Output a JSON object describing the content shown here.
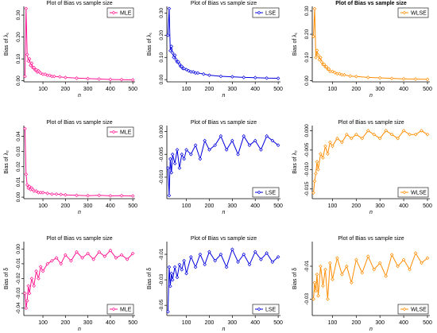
{
  "figure": {
    "note": "3x3 grid of bias plots"
  },
  "chart_data": [
    {
      "type": "line",
      "title": "Plot of Bias vs sample size",
      "title_bold": false,
      "xlabel": "n",
      "ylabel": "Bias of λ₁",
      "color": "#ff1493",
      "legend": "MLE",
      "legend_pos": "top-right",
      "xlim": [
        15,
        510
      ],
      "xticks": [
        100,
        200,
        300,
        400,
        500
      ],
      "ylim": [
        -0.005,
        0.34
      ],
      "yticks": [
        0.0,
        0.1,
        0.2,
        0.3
      ],
      "ytick_labels": [
        "0.00",
        "0.10",
        "0.20",
        "0.30"
      ],
      "x": [
        20,
        25,
        30,
        35,
        40,
        45,
        50,
        55,
        60,
        65,
        70,
        75,
        80,
        85,
        90,
        100,
        110,
        120,
        130,
        140,
        150,
        175,
        200,
        250,
        300,
        350,
        400,
        450,
        500
      ],
      "y": [
        0.02,
        0.33,
        0.12,
        0.09,
        0.1,
        0.07,
        0.08,
        0.06,
        0.06,
        0.05,
        0.05,
        0.04,
        0.045,
        0.04,
        0.035,
        0.03,
        0.03,
        0.025,
        0.025,
        0.02,
        0.02,
        0.018,
        0.015,
        0.012,
        0.01,
        0.008,
        0.006,
        0.005,
        0.004
      ]
    },
    {
      "type": "line",
      "title": "Plot of Bias vs sample size",
      "title_bold": false,
      "xlabel": "n",
      "ylabel": "Bias of λ₁",
      "color": "#0000dd",
      "legend": "LSE",
      "legend_pos": "top-right",
      "xlim": [
        15,
        510
      ],
      "xticks": [
        100,
        200,
        300,
        400,
        500
      ],
      "ylim": [
        -0.01,
        0.33
      ],
      "yticks": [
        0.0,
        0.1,
        0.2,
        0.3
      ],
      "ytick_labels": [
        "0.00",
        "0.10",
        "0.20",
        "0.30"
      ],
      "x": [
        20,
        25,
        30,
        35,
        40,
        45,
        50,
        55,
        60,
        65,
        70,
        75,
        80,
        85,
        90,
        100,
        110,
        120,
        130,
        140,
        150,
        175,
        200,
        250,
        300,
        350,
        400,
        450,
        500
      ],
      "y": [
        0.2,
        0.32,
        0.13,
        0.15,
        0.12,
        0.1,
        0.11,
        0.09,
        0.08,
        0.08,
        0.07,
        0.06,
        0.06,
        0.05,
        0.05,
        0.045,
        0.04,
        0.035,
        0.035,
        0.03,
        0.03,
        0.025,
        0.02,
        0.015,
        0.013,
        0.01,
        0.009,
        0.007,
        0.006
      ]
    },
    {
      "type": "line",
      "title": "Plot of Bias vs sample size",
      "title_bold": true,
      "xlabel": "n",
      "ylabel": "Bias of λ₁",
      "color": "#ff8c00",
      "legend": "WLSE",
      "legend_pos": "top-right",
      "xlim": [
        15,
        510
      ],
      "xticks": [
        100,
        200,
        300,
        400,
        500
      ],
      "ylim": [
        -0.005,
        0.32
      ],
      "yticks": [
        0.0,
        0.1,
        0.2,
        0.3
      ],
      "ytick_labels": [
        "0.00",
        "0.10",
        "0.20",
        "0.30"
      ],
      "x": [
        20,
        25,
        30,
        35,
        40,
        45,
        50,
        55,
        60,
        65,
        70,
        75,
        80,
        85,
        90,
        100,
        110,
        120,
        130,
        140,
        150,
        175,
        200,
        250,
        300,
        350,
        400,
        450,
        500
      ],
      "y": [
        0.19,
        0.31,
        0.1,
        0.13,
        0.11,
        0.09,
        0.1,
        0.08,
        0.07,
        0.07,
        0.06,
        0.06,
        0.05,
        0.05,
        0.04,
        0.04,
        0.035,
        0.03,
        0.03,
        0.025,
        0.025,
        0.02,
        0.018,
        0.014,
        0.012,
        0.01,
        0.008,
        0.007,
        0.006
      ]
    },
    {
      "type": "line",
      "title": "Plot of Bias vs sample size",
      "title_bold": false,
      "xlabel": "n",
      "ylabel": "Bias of λ₂",
      "color": "#ff1493",
      "legend": "MLE",
      "legend_pos": "top-right",
      "xlim": [
        15,
        510
      ],
      "xticks": [
        100,
        200,
        300,
        400,
        500
      ],
      "ylim": [
        -0.001,
        0.047
      ],
      "yticks": [
        0.0,
        0.01,
        0.02,
        0.03,
        0.04
      ],
      "ytick_labels": [
        "0.00",
        "0.01",
        "0.02",
        "0.03",
        "0.04"
      ],
      "x": [
        20,
        25,
        30,
        35,
        40,
        45,
        50,
        55,
        60,
        70,
        80,
        90,
        100,
        120,
        140,
        160,
        180,
        200,
        250,
        300,
        350,
        400,
        450,
        500
      ],
      "y": [
        0.045,
        0.015,
        0.008,
        0.006,
        0.007,
        0.005,
        0.006,
        0.005,
        0.004,
        0.004,
        0.003,
        0.003,
        0.003,
        0.0025,
        0.002,
        0.002,
        0.0018,
        0.0015,
        0.0012,
        0.001,
        0.0012,
        0.0009,
        0.001,
        0.0008
      ]
    },
    {
      "type": "line",
      "title": "Plot of Bias vs sample size",
      "title_bold": false,
      "xlabel": "n",
      "ylabel": "",
      "color": "#0000dd",
      "legend": "LSE",
      "legend_pos": "bottom-right",
      "xlim": [
        15,
        510
      ],
      "xticks": [
        100,
        200,
        300,
        400,
        500
      ],
      "ylim": [
        -0.0147,
        0.0013
      ],
      "yticks": [
        0.0,
        -0.005,
        -0.01
      ],
      "ytick_labels": [
        "0.000",
        "-0.005",
        "-0.010"
      ],
      "x": [
        20,
        25,
        30,
        35,
        40,
        50,
        60,
        70,
        80,
        90,
        100,
        120,
        140,
        160,
        180,
        200,
        225,
        250,
        275,
        300,
        325,
        350,
        375,
        400,
        425,
        450,
        475,
        500
      ],
      "y": [
        -0.008,
        -0.014,
        -0.006,
        -0.009,
        -0.005,
        -0.007,
        -0.004,
        -0.008,
        -0.005,
        -0.006,
        -0.004,
        -0.005,
        -0.003,
        -0.006,
        -0.002,
        -0.004,
        -0.003,
        -0.001,
        -0.004,
        -0.002,
        -0.005,
        -0.001,
        -0.003,
        -0.002,
        -0.004,
        -0.001,
        -0.002,
        -0.003
      ]
    },
    {
      "type": "line",
      "title": "Plot of Bias vs sample size",
      "title_bold": false,
      "xlabel": "n",
      "ylabel": "Bias of λ₂",
      "color": "#ff8c00",
      "legend": "WLSE",
      "legend_pos": "bottom-right",
      "xlim": [
        15,
        510
      ],
      "xticks": [
        100,
        200,
        300,
        400,
        500
      ],
      "ylim": [
        -0.0175,
        0.0013
      ],
      "yticks": [
        0.0,
        -0.005,
        -0.01,
        -0.015
      ],
      "ytick_labels": [
        "0.000",
        "-0.005",
        "-0.010",
        "-0.015"
      ],
      "x": [
        20,
        25,
        30,
        35,
        40,
        50,
        60,
        70,
        80,
        90,
        100,
        120,
        140,
        160,
        180,
        200,
        225,
        250,
        275,
        300,
        325,
        350,
        375,
        400,
        425,
        450,
        475,
        500
      ],
      "y": [
        -0.016,
        -0.013,
        -0.011,
        -0.008,
        -0.01,
        -0.006,
        -0.007,
        -0.004,
        -0.006,
        -0.003,
        -0.004,
        -0.002,
        -0.003,
        -0.001,
        -0.002,
        -0.001,
        -0.002,
        0.0,
        -0.001,
        -0.002,
        0.0,
        -0.001,
        -0.002,
        0.0,
        -0.001,
        -0.001,
        0.0,
        -0.001
      ]
    },
    {
      "type": "line",
      "title": "Plot of Bias vs sample size",
      "title_bold": false,
      "xlabel": "n",
      "ylabel": "Bias of δ",
      "color": "#ff1493",
      "legend": "MLE",
      "legend_pos": "bottom-right",
      "xlim": [
        15,
        510
      ],
      "xticks": [
        100,
        200,
        300,
        400,
        500
      ],
      "ylim": [
        -0.045,
        0.005
      ],
      "yticks": [
        0.0,
        -0.01,
        -0.02,
        -0.03,
        -0.04
      ],
      "ytick_labels": [
        "0.00",
        "-0.01",
        "-0.02",
        "-0.03",
        "-0.04"
      ],
      "x": [
        20,
        25,
        30,
        35,
        40,
        50,
        60,
        70,
        80,
        90,
        100,
        120,
        140,
        160,
        180,
        200,
        225,
        250,
        275,
        300,
        325,
        350,
        375,
        400,
        425,
        450,
        475,
        500
      ],
      "y": [
        -0.03,
        -0.04,
        -0.035,
        -0.025,
        -0.03,
        -0.02,
        -0.025,
        -0.015,
        -0.02,
        -0.012,
        -0.015,
        -0.01,
        -0.008,
        -0.006,
        -0.01,
        -0.004,
        -0.008,
        -0.002,
        -0.006,
        -0.003,
        -0.007,
        -0.002,
        -0.005,
        -0.001,
        -0.006,
        -0.004,
        -0.007,
        -0.003
      ]
    },
    {
      "type": "line",
      "title": "Plot of Bias vs sample size",
      "title_bold": false,
      "xlabel": "n",
      "ylabel": "Bias of δ",
      "color": "#0000dd",
      "legend": "LSE",
      "legend_pos": "bottom-right",
      "xlim": [
        15,
        510
      ],
      "xticks": [
        100,
        200,
        300,
        400,
        500
      ],
      "ylim": [
        -0.058,
        0.0
      ],
      "yticks": [
        -0.01,
        -0.03,
        -0.05
      ],
      "ytick_labels": [
        "-0.01",
        "-0.03",
        "-0.05"
      ],
      "x": [
        20,
        25,
        30,
        35,
        40,
        50,
        60,
        70,
        80,
        90,
        100,
        120,
        140,
        160,
        180,
        200,
        225,
        250,
        275,
        300,
        325,
        350,
        375,
        400,
        425,
        450,
        475,
        500
      ],
      "y": [
        -0.055,
        -0.02,
        -0.035,
        -0.025,
        -0.03,
        -0.02,
        -0.028,
        -0.018,
        -0.022,
        -0.015,
        -0.025,
        -0.012,
        -0.02,
        -0.01,
        -0.018,
        -0.008,
        -0.015,
        -0.01,
        -0.02,
        -0.006,
        -0.016,
        -0.01,
        -0.018,
        -0.008,
        -0.014,
        -0.009,
        -0.016,
        -0.012
      ]
    },
    {
      "type": "line",
      "title": "Plot of Bias vs sample size",
      "title_bold": false,
      "xlabel": "n",
      "ylabel": "Bias of δ",
      "color": "#ff8c00",
      "legend": "WLSE",
      "legend_pos": "bottom-right",
      "xlim": [
        15,
        510
      ],
      "xticks": [
        100,
        200,
        300,
        400,
        500
      ],
      "ylim": [
        -0.04,
        0.005
      ],
      "yticks": [
        -0.01,
        -0.03
      ],
      "ytick_labels": [
        "-0.01",
        "-0.03"
      ],
      "x": [
        20,
        25,
        30,
        35,
        40,
        50,
        60,
        70,
        80,
        90,
        100,
        120,
        140,
        160,
        180,
        200,
        225,
        250,
        275,
        300,
        325,
        350,
        375,
        400,
        425,
        450,
        475,
        500
      ],
      "y": [
        -0.03,
        -0.02,
        -0.025,
        -0.015,
        -0.028,
        -0.01,
        -0.022,
        -0.012,
        -0.03,
        -0.008,
        -0.018,
        -0.005,
        -0.015,
        -0.01,
        -0.02,
        -0.006,
        -0.014,
        -0.004,
        -0.012,
        -0.008,
        -0.016,
        -0.003,
        -0.01,
        -0.006,
        -0.012,
        -0.002,
        -0.008,
        -0.005
      ]
    }
  ]
}
